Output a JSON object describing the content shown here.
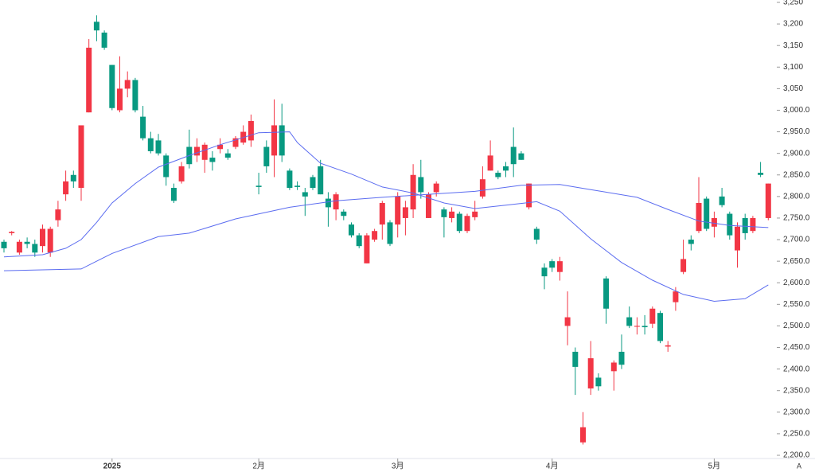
{
  "chart_data": {
    "type": "candlestick",
    "categories": [
      null,
      null,
      null,
      null,
      null,
      null,
      null,
      null,
      null,
      null,
      null,
      null,
      null,
      null,
      "2025",
      null,
      null,
      null,
      null,
      null,
      null,
      null,
      null,
      null,
      null,
      null,
      null,
      null,
      null,
      null,
      null,
      null,
      null,
      "2月",
      null,
      null,
      null,
      null,
      null,
      null,
      null,
      null,
      null,
      null,
      null,
      null,
      null,
      null,
      null,
      null,
      null,
      "3月",
      null,
      null,
      null,
      null,
      null,
      null,
      null,
      null,
      null,
      null,
      null,
      null,
      null,
      null,
      null,
      null,
      null,
      null,
      null,
      "4月",
      null,
      null,
      null,
      null,
      null,
      null,
      null,
      null,
      null,
      null,
      null,
      null,
      null,
      null,
      null,
      null,
      null,
      null,
      null,
      null,
      "5月",
      null,
      null,
      null,
      null,
      null,
      null,
      null
    ],
    "open": [
      2695,
      2715,
      2670,
      2695,
      2690,
      2685,
      2670,
      2745,
      2805,
      2850,
      2820,
      2995,
      3205,
      3180,
      3105,
      3000,
      3050,
      3070,
      2985,
      2935,
      2930,
      2895,
      2820,
      2835,
      2915,
      2895,
      2885,
      2890,
      2910,
      2900,
      2915,
      2925,
      2930,
      2825,
      2915,
      2895,
      2965,
      2860,
      2825,
      2810,
      2845,
      2870,
      2795,
      2770,
      2765,
      2735,
      2710,
      2645,
      2700,
      2735,
      2740,
      2735,
      2750,
      2770,
      2845,
      2750,
      2810,
      2770,
      2750,
      2760,
      2720,
      2752,
      2800,
      2860,
      2855,
      2870,
      2915,
      2900,
      2775,
      2725,
      2635,
      2650,
      2625,
      2500,
      2440,
      2230,
      2355,
      2380,
      2610,
      2395,
      2440,
      2520,
      2498,
      2500,
      2505,
      2530,
      2452,
      2555,
      2625,
      2700,
      2720,
      2795,
      2730,
      2800,
      2760,
      2675,
      2750,
      2720,
      2855,
      2750
    ],
    "high": [
      2700,
      2720,
      2700,
      2705,
      2700,
      2735,
      2730,
      2790,
      2860,
      2860,
      2965,
      3165,
      3220,
      3185,
      3105,
      3125,
      3090,
      3075,
      3010,
      2950,
      2945,
      2900,
      2830,
      2880,
      2955,
      2935,
      2925,
      2905,
      2935,
      2910,
      2940,
      2965,
      2990,
      2855,
      2930,
      3025,
      3015,
      2865,
      2835,
      2820,
      2850,
      2885,
      2810,
      2810,
      2770,
      2740,
      2715,
      2715,
      2725,
      2790,
      2745,
      2810,
      2790,
      2875,
      2885,
      2810,
      2835,
      2775,
      2775,
      2765,
      2760,
      2790,
      2870,
      2930,
      2860,
      2880,
      2960,
      2905,
      2830,
      2730,
      2645,
      2655,
      2660,
      2580,
      2450,
      2300,
      2465,
      2390,
      2615,
      2420,
      2480,
      2545,
      2520,
      2525,
      2545,
      2535,
      2465,
      2590,
      2700,
      2710,
      2845,
      2800,
      2765,
      2820,
      2765,
      2740,
      2760,
      2755,
      2880,
      2830
    ],
    "low": [
      2670,
      2710,
      2665,
      2680,
      2660,
      2670,
      2660,
      2730,
      2790,
      2820,
      2790,
      2995,
      3160,
      3140,
      3000,
      2995,
      3030,
      2995,
      2930,
      2900,
      2895,
      2825,
      2785,
      2830,
      2865,
      2880,
      2855,
      2860,
      2900,
      2885,
      2910,
      2920,
      2915,
      2805,
      2855,
      2845,
      2880,
      2815,
      2815,
      2755,
      2815,
      2805,
      2730,
      2745,
      2745,
      2705,
      2680,
      2645,
      2695,
      2700,
      2685,
      2705,
      2710,
      2750,
      2795,
      2750,
      2800,
      2705,
      2740,
      2715,
      2715,
      2745,
      2795,
      2860,
      2840,
      2845,
      2845,
      2885,
      2770,
      2690,
      2585,
      2625,
      2605,
      2455,
      2340,
      2225,
      2340,
      2350,
      2505,
      2350,
      2400,
      2495,
      2480,
      2480,
      2495,
      2460,
      2440,
      2535,
      2620,
      2675,
      2715,
      2720,
      2705,
      2775,
      2700,
      2635,
      2700,
      2715,
      2845,
      2745
    ],
    "close": [
      2680,
      2718,
      2695,
      2690,
      2670,
      2725,
      2725,
      2770,
      2835,
      2835,
      2965,
      3145,
      3185,
      3145,
      3005,
      3050,
      3070,
      3000,
      2935,
      2905,
      2900,
      2845,
      2790,
      2870,
      2875,
      2915,
      2920,
      2880,
      2920,
      2890,
      2935,
      2950,
      2975,
      2822,
      2870,
      2965,
      2895,
      2820,
      2822,
      2800,
      2820,
      2805,
      2775,
      2805,
      2755,
      2710,
      2685,
      2710,
      2720,
      2785,
      2690,
      2800,
      2775,
      2850,
      2810,
      2805,
      2830,
      2752,
      2765,
      2720,
      2755,
      2765,
      2840,
      2895,
      2845,
      2860,
      2875,
      2885,
      2830,
      2700,
      2615,
      2635,
      2650,
      2520,
      2405,
      2265,
      2425,
      2360,
      2540,
      2415,
      2410,
      2500,
      2500,
      2497,
      2540,
      2465,
      2455,
      2580,
      2655,
      2690,
      2785,
      2725,
      2750,
      2780,
      2710,
      2730,
      2715,
      2750,
      2850,
      2830
    ],
    "up_color": "#f23645",
    "down_color": "#089981",
    "lines": [
      {
        "color": "#5b6cf0",
        "x": [
          0,
          5,
          8,
          10,
          12,
          14,
          17,
          20,
          24,
          28,
          33,
          37,
          38,
          41,
          45,
          49,
          53,
          57,
          61,
          65,
          69,
          72,
          76,
          80,
          84,
          88,
          92,
          96,
          99
        ],
        "values": [
          2660,
          2665,
          2680,
          2700,
          2740,
          2785,
          2830,
          2868,
          2895,
          2920,
          2948,
          2950,
          2925,
          2877,
          2852,
          2822,
          2808,
          2785,
          2772,
          2780,
          2788,
          2766,
          2702,
          2647,
          2606,
          2573,
          2557,
          2563,
          2595
        ]
      },
      {
        "color": "#5b6cf0",
        "x": [
          0,
          10,
          14,
          20,
          24,
          30,
          37,
          43,
          49,
          55,
          61,
          67,
          72,
          76,
          82,
          86,
          90,
          94,
          99
        ],
        "values": [
          2628,
          2632,
          2668,
          2707,
          2715,
          2748,
          2775,
          2790,
          2798,
          2805,
          2812,
          2826,
          2828,
          2816,
          2798,
          2770,
          2743,
          2733,
          2728
        ]
      }
    ],
    "ylim": [
      2200,
      3250
    ],
    "yticks": [
      {
        "value": 2200,
        "label": "2,200.0"
      },
      {
        "value": 2250,
        "label": "2,250.0"
      },
      {
        "value": 2300,
        "label": "2,300.0"
      },
      {
        "value": 2350,
        "label": "2,350.0"
      },
      {
        "value": 2400,
        "label": "2,400.0"
      },
      {
        "value": 2450,
        "label": "2,450.0"
      },
      {
        "value": 2500,
        "label": "2,500.0"
      },
      {
        "value": 2550,
        "label": "2,550.0"
      },
      {
        "value": 2600,
        "label": "2,600.0"
      },
      {
        "value": 2650,
        "label": "2,650.0"
      },
      {
        "value": 2700,
        "label": "2,700.0"
      },
      {
        "value": 2750,
        "label": "2,750.0"
      },
      {
        "value": 2800,
        "label": "2,800.0"
      },
      {
        "value": 2850,
        "label": "2,850.0"
      },
      {
        "value": 2900,
        "label": "2,900.0"
      },
      {
        "value": 2950,
        "label": "2,950.0"
      },
      {
        "value": 3000,
        "label": "3,000.0"
      },
      {
        "value": 3050,
        "label": "3,050"
      },
      {
        "value": 3100,
        "label": "3,100"
      },
      {
        "value": 3150,
        "label": "3,150"
      },
      {
        "value": 3200,
        "label": "3,200"
      },
      {
        "value": 3250,
        "label": "3,250"
      }
    ],
    "axis_button": "A"
  }
}
